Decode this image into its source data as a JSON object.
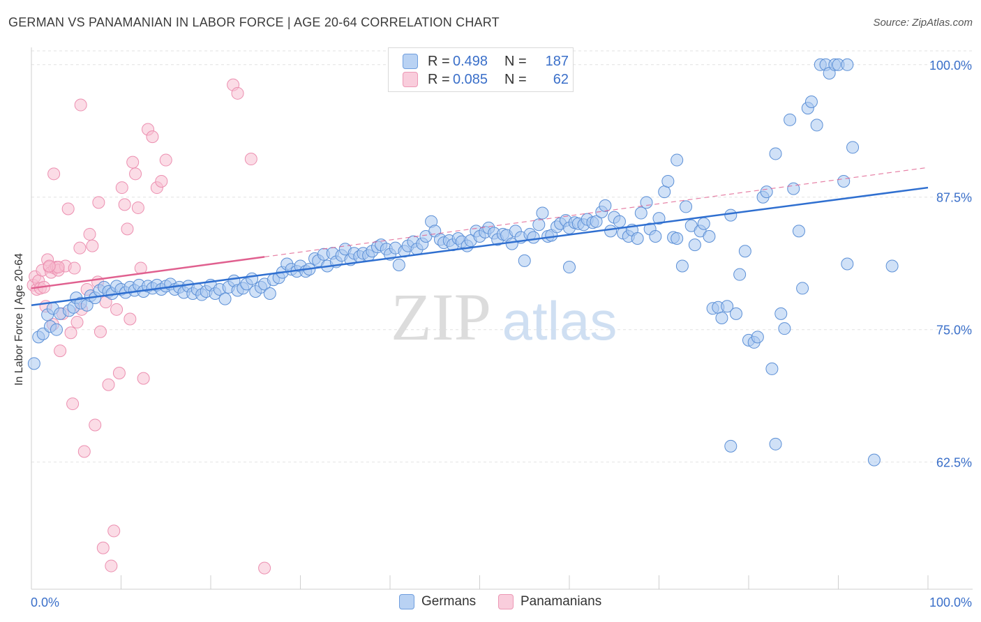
{
  "title": "GERMAN VS PANAMANIAN IN LABOR FORCE | AGE 20-64 CORRELATION CHART",
  "source": "Source: ZipAtlas.com",
  "watermark": {
    "zip": "ZIP",
    "atlas": "atlas"
  },
  "legend": {
    "rows": [
      {
        "r_label": "R =",
        "r_value": "0.498",
        "n_label": "N =",
        "n_value": "187"
      },
      {
        "r_label": "R =",
        "r_value": "0.085",
        "n_label": "N =",
        "n_value": "62"
      }
    ]
  },
  "colors": {
    "german_fill": "#a9c8f0",
    "german_stroke": "#5b8fd6",
    "german_line": "#2f6fd0",
    "panamanian_fill": "#f7c0d2",
    "panamanian_stroke": "#ec8fb0",
    "panamanian_line": "#e0608f",
    "axis_text": "#3a6fc9",
    "grid": "#e2e2e2"
  },
  "chart_data": {
    "type": "scatter",
    "title": "GERMAN VS PANAMANIAN IN LABOR FORCE | AGE 20-64 CORRELATION CHART",
    "xlabel": "",
    "ylabel": "In Labor Force | Age 20-64",
    "xlim": [
      0,
      100
    ],
    "ylim": [
      50.5,
      101.5
    ],
    "x_tick_labels": [
      "0.0%",
      "100.0%"
    ],
    "y_ticks": [
      62.5,
      75.0,
      87.5,
      100.0
    ],
    "y_tick_labels": [
      "62.5%",
      "75.0%",
      "87.5%",
      "100.0%"
    ],
    "grid": true,
    "legend_position": "top-center",
    "series": [
      {
        "name": "Germans",
        "R": 0.498,
        "N": 187,
        "trend": {
          "x": [
            0,
            100
          ],
          "y": [
            77.3,
            88.4
          ]
        },
        "points": [
          [
            0.3,
            71.8
          ],
          [
            0.8,
            74.3
          ],
          [
            1.3,
            74.6
          ],
          [
            1.8,
            76.4
          ],
          [
            2.1,
            75.3
          ],
          [
            2.4,
            77.0
          ],
          [
            2.8,
            75.0
          ],
          [
            3.2,
            76.5
          ],
          [
            4.2,
            76.8
          ],
          [
            4.7,
            77.1
          ],
          [
            5.0,
            78.0
          ],
          [
            5.5,
            77.5
          ],
          [
            6.2,
            77.3
          ],
          [
            6.6,
            78.2
          ],
          [
            7.1,
            78.0
          ],
          [
            7.6,
            78.7
          ],
          [
            8.1,
            79.0
          ],
          [
            8.6,
            78.6
          ],
          [
            9.0,
            78.4
          ],
          [
            9.5,
            79.1
          ],
          [
            10.0,
            78.8
          ],
          [
            10.5,
            78.5
          ],
          [
            11.0,
            79.0
          ],
          [
            11.5,
            78.7
          ],
          [
            12.0,
            79.2
          ],
          [
            12.5,
            78.6
          ],
          [
            13.0,
            79.1
          ],
          [
            13.5,
            78.9
          ],
          [
            14.0,
            79.2
          ],
          [
            14.5,
            78.8
          ],
          [
            15.0,
            79.1
          ],
          [
            15.5,
            79.3
          ],
          [
            16.0,
            78.8
          ],
          [
            16.5,
            79.0
          ],
          [
            17.0,
            78.5
          ],
          [
            17.5,
            79.1
          ],
          [
            18.0,
            78.4
          ],
          [
            18.5,
            78.8
          ],
          [
            19.0,
            78.3
          ],
          [
            19.5,
            78.6
          ],
          [
            20.0,
            79.2
          ],
          [
            20.5,
            78.4
          ],
          [
            21.0,
            78.8
          ],
          [
            21.6,
            77.9
          ],
          [
            22.0,
            79.0
          ],
          [
            22.6,
            79.6
          ],
          [
            23.0,
            78.7
          ],
          [
            23.6,
            78.9
          ],
          [
            24.0,
            79.3
          ],
          [
            24.6,
            79.8
          ],
          [
            25.0,
            78.6
          ],
          [
            25.6,
            79.0
          ],
          [
            26.0,
            79.3
          ],
          [
            26.6,
            78.4
          ],
          [
            27.0,
            79.7
          ],
          [
            27.6,
            79.9
          ],
          [
            28.0,
            80.4
          ],
          [
            28.5,
            81.2
          ],
          [
            29.0,
            80.7
          ],
          [
            29.6,
            80.5
          ],
          [
            30.0,
            81.0
          ],
          [
            30.6,
            80.5
          ],
          [
            31.0,
            80.7
          ],
          [
            31.6,
            81.7
          ],
          [
            32.0,
            81.5
          ],
          [
            32.6,
            82.1
          ],
          [
            33.0,
            81.0
          ],
          [
            33.6,
            82.2
          ],
          [
            34.0,
            81.4
          ],
          [
            34.6,
            82.0
          ],
          [
            35.0,
            82.6
          ],
          [
            35.6,
            81.6
          ],
          [
            36.0,
            82.2
          ],
          [
            36.6,
            81.9
          ],
          [
            37.0,
            82.2
          ],
          [
            37.6,
            82.0
          ],
          [
            38.0,
            82.4
          ],
          [
            38.6,
            82.8
          ],
          [
            39.0,
            83.0
          ],
          [
            39.6,
            82.6
          ],
          [
            40.0,
            82.1
          ],
          [
            40.6,
            82.7
          ],
          [
            41.0,
            81.1
          ],
          [
            41.6,
            82.4
          ],
          [
            42.0,
            82.9
          ],
          [
            42.6,
            83.3
          ],
          [
            43.0,
            82.6
          ],
          [
            43.6,
            83.1
          ],
          [
            44.0,
            83.8
          ],
          [
            44.6,
            85.2
          ],
          [
            45.0,
            84.3
          ],
          [
            45.6,
            83.5
          ],
          [
            46.0,
            83.2
          ],
          [
            46.6,
            83.4
          ],
          [
            47.0,
            83.0
          ],
          [
            47.6,
            83.6
          ],
          [
            48.0,
            83.3
          ],
          [
            48.6,
            82.9
          ],
          [
            49.0,
            83.4
          ],
          [
            49.6,
            84.3
          ],
          [
            50.0,
            83.8
          ],
          [
            50.6,
            84.2
          ],
          [
            51.0,
            84.6
          ],
          [
            51.6,
            84.1
          ],
          [
            52.0,
            83.5
          ],
          [
            52.6,
            84.0
          ],
          [
            53.0,
            83.9
          ],
          [
            53.6,
            83.1
          ],
          [
            54.0,
            84.3
          ],
          [
            54.6,
            83.7
          ],
          [
            55.0,
            81.5
          ],
          [
            55.6,
            84.0
          ],
          [
            56.0,
            83.7
          ],
          [
            56.6,
            84.9
          ],
          [
            57.0,
            86.0
          ],
          [
            57.6,
            83.8
          ],
          [
            58.0,
            83.9
          ],
          [
            58.6,
            84.7
          ],
          [
            59.0,
            85.0
          ],
          [
            59.6,
            85.3
          ],
          [
            60.0,
            84.6
          ],
          [
            60.6,
            85.1
          ],
          [
            61.0,
            85.0
          ],
          [
            61.6,
            84.9
          ],
          [
            62.0,
            85.4
          ],
          [
            62.6,
            85.1
          ],
          [
            63.0,
            85.2
          ],
          [
            63.6,
            86.1
          ],
          [
            64.0,
            86.7
          ],
          [
            64.6,
            84.3
          ],
          [
            65.0,
            85.6
          ],
          [
            65.6,
            85.2
          ],
          [
            66.0,
            84.1
          ],
          [
            66.6,
            83.8
          ],
          [
            67.0,
            84.4
          ],
          [
            67.6,
            83.6
          ],
          [
            68.0,
            86.0
          ],
          [
            68.6,
            87.0
          ],
          [
            69.0,
            84.5
          ],
          [
            69.6,
            83.8
          ],
          [
            70.0,
            85.5
          ],
          [
            70.6,
            88.0
          ],
          [
            71.0,
            89.0
          ],
          [
            71.6,
            83.7
          ],
          [
            72.0,
            83.6
          ],
          [
            72.6,
            81.0
          ],
          [
            73.0,
            86.6
          ],
          [
            73.6,
            84.8
          ],
          [
            74.0,
            83.0
          ],
          [
            74.6,
            84.3
          ],
          [
            75.0,
            85.0
          ],
          [
            75.6,
            83.8
          ],
          [
            76.0,
            77.0
          ],
          [
            76.6,
            77.1
          ],
          [
            77.0,
            76.1
          ],
          [
            77.6,
            77.2
          ],
          [
            78.0,
            85.8
          ],
          [
            78.6,
            76.5
          ],
          [
            79.0,
            80.2
          ],
          [
            79.6,
            82.4
          ],
          [
            80.0,
            74.0
          ],
          [
            80.6,
            73.8
          ],
          [
            81.0,
            74.3
          ],
          [
            81.6,
            87.5
          ],
          [
            82.0,
            88.0
          ],
          [
            82.6,
            71.3
          ],
          [
            83.0,
            91.6
          ],
          [
            83.6,
            76.5
          ],
          [
            84.0,
            75.1
          ],
          [
            84.6,
            94.8
          ],
          [
            85.0,
            88.3
          ],
          [
            85.6,
            84.3
          ],
          [
            86.0,
            78.9
          ],
          [
            86.6,
            95.9
          ],
          [
            87.0,
            96.5
          ],
          [
            87.6,
            94.3
          ],
          [
            88.0,
            100.0
          ],
          [
            88.6,
            100.0
          ],
          [
            89.0,
            99.2
          ],
          [
            89.6,
            100.0
          ],
          [
            90.0,
            100.0
          ],
          [
            90.6,
            89.0
          ],
          [
            91.0,
            81.2
          ],
          [
            91.6,
            92.2
          ],
          [
            60.0,
            80.9
          ],
          [
            72.0,
            91.0
          ],
          [
            78.0,
            64.0
          ],
          [
            83.0,
            64.2
          ],
          [
            94.0,
            62.7
          ],
          [
            91.0,
            100.0
          ],
          [
            96.0,
            81.0
          ]
        ]
      },
      {
        "name": "Panamanians",
        "R": 0.085,
        "N": 62,
        "trend": {
          "x": [
            0,
            100
          ],
          "y": [
            78.9,
            90.3
          ]
        },
        "points": [
          [
            0.2,
            79.2
          ],
          [
            0.4,
            80.0
          ],
          [
            0.6,
            78.8
          ],
          [
            0.8,
            79.6
          ],
          [
            1.0,
            78.9
          ],
          [
            1.2,
            80.6
          ],
          [
            1.4,
            79.0
          ],
          [
            1.6,
            77.2
          ],
          [
            1.8,
            81.6
          ],
          [
            2.0,
            80.9
          ],
          [
            2.2,
            80.4
          ],
          [
            2.4,
            75.5
          ],
          [
            2.6,
            80.8
          ],
          [
            2.8,
            80.9
          ],
          [
            3.0,
            80.6
          ],
          [
            3.2,
            73.0
          ],
          [
            3.5,
            76.5
          ],
          [
            3.8,
            81.0
          ],
          [
            4.1,
            86.4
          ],
          [
            4.4,
            74.7
          ],
          [
            4.6,
            68.0
          ],
          [
            4.8,
            80.8
          ],
          [
            5.1,
            75.7
          ],
          [
            5.4,
            82.7
          ],
          [
            5.6,
            76.9
          ],
          [
            5.9,
            63.5
          ],
          [
            6.2,
            78.8
          ],
          [
            6.5,
            84.0
          ],
          [
            6.8,
            82.9
          ],
          [
            7.1,
            66.0
          ],
          [
            7.4,
            79.5
          ],
          [
            7.7,
            74.8
          ],
          [
            8.0,
            54.4
          ],
          [
            8.3,
            77.6
          ],
          [
            8.6,
            69.8
          ],
          [
            8.9,
            52.7
          ],
          [
            9.2,
            56.0
          ],
          [
            9.5,
            76.9
          ],
          [
            9.8,
            70.9
          ],
          [
            10.1,
            88.4
          ],
          [
            10.4,
            86.8
          ],
          [
            10.7,
            84.5
          ],
          [
            11.0,
            76.0
          ],
          [
            11.3,
            90.8
          ],
          [
            11.6,
            89.7
          ],
          [
            11.9,
            86.5
          ],
          [
            12.2,
            80.8
          ],
          [
            12.5,
            70.4
          ],
          [
            13.0,
            93.9
          ],
          [
            13.5,
            93.2
          ],
          [
            14.0,
            88.4
          ],
          [
            14.5,
            89.0
          ],
          [
            15.0,
            91.0
          ],
          [
            2.5,
            89.7
          ],
          [
            5.5,
            96.2
          ],
          [
            7.5,
            87.0
          ],
          [
            22.5,
            98.1
          ],
          [
            23.0,
            97.3
          ],
          [
            24.5,
            91.1
          ],
          [
            26.0,
            52.5
          ],
          [
            3.0,
            80.9
          ],
          [
            2.0,
            81.0
          ]
        ]
      }
    ]
  },
  "bottom_legend": {
    "items": [
      "Germans",
      "Panamanians"
    ]
  }
}
